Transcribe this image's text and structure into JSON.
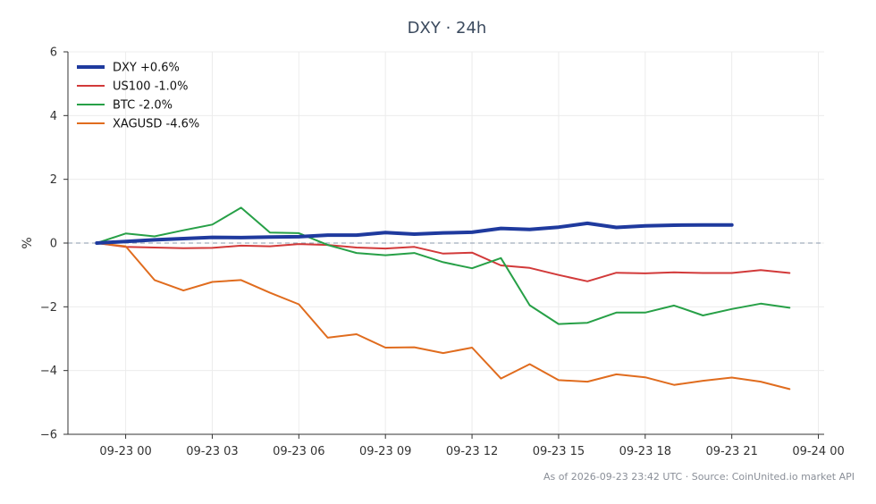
{
  "chart_data": {
    "type": "line",
    "title": "DXY · 24h",
    "ylabel": "%",
    "xlabel": "",
    "ylim": [
      -6,
      6
    ],
    "yticks": [
      6,
      4,
      2,
      0,
      -2,
      -4,
      -6
    ],
    "ytick_labels": [
      "6",
      "4",
      "2",
      "0",
      "−2",
      "−4",
      "−6"
    ],
    "xticks": [
      {
        "label": "09-23 00",
        "hours_after_2300": 1
      },
      {
        "label": "09-23 03",
        "hours_after_2300": 4
      },
      {
        "label": "09-23 06",
        "hours_after_2300": 7
      },
      {
        "label": "09-23 09",
        "hours_after_2300": 10
      },
      {
        "label": "09-23 12",
        "hours_after_2300": 13
      },
      {
        "label": "09-23 15",
        "hours_after_2300": 16
      },
      {
        "label": "09-23 18",
        "hours_after_2300": 19
      },
      {
        "label": "09-23 21",
        "hours_after_2300": 22
      },
      {
        "label": "09-24 00",
        "hours_after_2300": 25
      }
    ],
    "x_start": "09-22 23:00",
    "x_range_hours": [
      -1,
      25.2
    ],
    "grid": true,
    "legend_position": "top-left",
    "zero_line": true,
    "series": [
      {
        "name": "DXY +0.6%",
        "color": "#1f3a9e",
        "emphasis": true,
        "x": [
          0,
          1,
          2,
          3,
          4,
          5,
          6,
          7,
          8,
          9,
          10,
          11,
          12,
          13,
          14,
          15,
          16,
          17,
          18,
          19,
          20,
          21,
          22
        ],
        "values": [
          0.0,
          0.05,
          0.1,
          0.14,
          0.18,
          0.17,
          0.19,
          0.2,
          0.25,
          0.25,
          0.33,
          0.28,
          0.32,
          0.34,
          0.46,
          0.43,
          0.5,
          0.62,
          0.49,
          0.54,
          0.56,
          0.57,
          0.57
        ]
      },
      {
        "name": "US100 -1.0%",
        "color": "#d23a3a",
        "x": [
          0,
          1,
          2,
          3,
          4,
          5,
          6,
          7,
          8,
          9,
          10,
          11,
          12,
          13,
          14,
          15,
          16,
          17,
          18,
          19,
          20,
          21,
          22,
          23,
          24
        ],
        "values": [
          0.0,
          -0.12,
          -0.14,
          -0.16,
          -0.15,
          -0.08,
          -0.1,
          -0.03,
          -0.06,
          -0.14,
          -0.17,
          -0.12,
          -0.33,
          -0.3,
          -0.7,
          -0.78,
          -1.0,
          -1.2,
          -0.93,
          -0.95,
          -0.92,
          -0.94,
          -0.94,
          -0.85,
          -0.94
        ]
      },
      {
        "name": "BTC -2.0%",
        "color": "#27a047",
        "x": [
          0,
          1,
          2,
          3,
          4,
          5,
          6,
          7,
          8,
          9,
          10,
          11,
          12,
          13,
          14,
          15,
          16,
          17,
          18,
          19,
          20,
          21,
          22,
          23,
          24
        ],
        "values": [
          0.0,
          0.3,
          0.21,
          0.4,
          0.58,
          1.11,
          0.33,
          0.31,
          -0.06,
          -0.31,
          -0.38,
          -0.31,
          -0.6,
          -0.79,
          -0.47,
          -1.95,
          -2.54,
          -2.5,
          -2.18,
          -2.18,
          -1.96,
          -2.27,
          -2.07,
          -1.9,
          -2.03
        ]
      },
      {
        "name": "XAGUSD -4.6%",
        "color": "#e06c1e",
        "x": [
          0,
          1,
          2,
          3,
          4,
          5,
          6,
          7,
          8,
          9,
          10,
          11,
          12,
          13,
          14,
          15,
          16,
          17,
          18,
          19,
          20,
          21,
          22,
          23,
          24
        ],
        "values": [
          0.0,
          -0.1,
          -1.16,
          -1.49,
          -1.22,
          -1.16,
          -1.56,
          -1.92,
          -2.97,
          -2.86,
          -3.28,
          -3.27,
          -3.45,
          -3.28,
          -4.25,
          -3.8,
          -4.3,
          -4.35,
          -4.12,
          -4.21,
          -4.45,
          -4.32,
          -4.22,
          -4.35,
          -4.58
        ]
      }
    ]
  },
  "footer": "As of 2026-09-23 23:42 UTC · Source: CoinUnited.io market API"
}
